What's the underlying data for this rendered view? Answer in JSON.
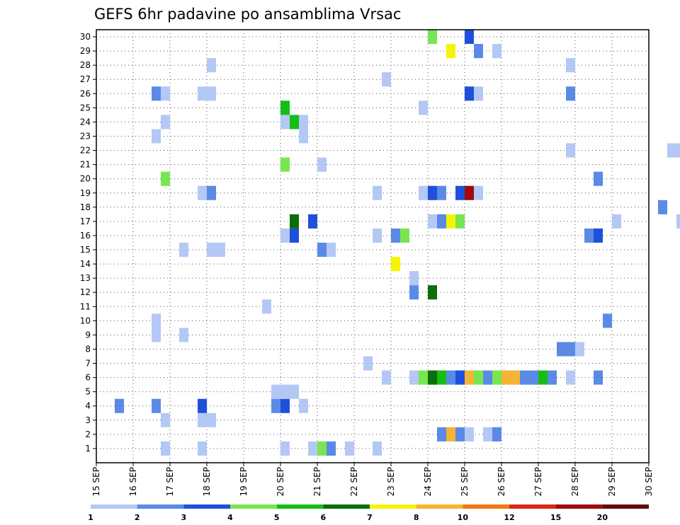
{
  "chart_data": {
    "type": "heatmap",
    "title": "GEFS 6hr padavine po ansamblima Vrsac",
    "xlabel": "",
    "ylabel": "",
    "x_ticks": [
      "15 SEP",
      "16 SEP",
      "17 SEP",
      "18 SEP",
      "19 SEP",
      "20 SEP",
      "21 SEP",
      "22 SEP",
      "23 SEP",
      "24 SEP",
      "25 SEP",
      "26 SEP",
      "27 SEP",
      "28 SEP",
      "29 SEP",
      "30 SEP"
    ],
    "y_ticks": [
      "1",
      "2",
      "3",
      "4",
      "5",
      "6",
      "7",
      "8",
      "9",
      "10",
      "11",
      "12",
      "13",
      "14",
      "15",
      "16",
      "17",
      "18",
      "19",
      "20",
      "21",
      "22",
      "23",
      "24",
      "25",
      "26",
      "27",
      "28",
      "29",
      "30"
    ],
    "x_range": [
      "15 SEP",
      "30 SEP"
    ],
    "y_range": [
      1,
      30
    ],
    "time_step_hours": 6,
    "grid": true,
    "legend": "bottom",
    "colorbar": {
      "labels": [
        "1",
        "2",
        "3",
        "4",
        "5",
        "6",
        "7",
        "8",
        "10",
        "12",
        "15",
        "20"
      ],
      "colors": [
        "#b4c8f5",
        "#5a8ae6",
        "#1e50dc",
        "#78e650",
        "#14be14",
        "#0a6e0a",
        "#f5f500",
        "#f5b432",
        "#f57814",
        "#dc2814",
        "#a00a0a",
        "#640a0a"
      ]
    },
    "cells": [
      {
        "m": 1,
        "t": "16 SEP 18Z",
        "v": 1.5
      },
      {
        "m": 1,
        "t": "20 SEP 00Z",
        "v": 1.5
      },
      {
        "m": 1,
        "t": "20 SEP 18Z",
        "v": 1.5
      },
      {
        "m": 1,
        "t": "21 SEP 00Z",
        "v": 4.5
      },
      {
        "m": 1,
        "t": "21 SEP 06Z",
        "v": 2.5
      },
      {
        "m": 1,
        "t": "21 SEP 18Z",
        "v": 1.5
      },
      {
        "m": 1,
        "t": "22 SEP 12Z",
        "v": 1.5
      },
      {
        "m": 1,
        "t": "17 SEP 18Z",
        "v": 1.5
      },
      {
        "m": 2,
        "t": "24 SEP 06Z",
        "v": 2.5
      },
      {
        "m": 2,
        "t": "24 SEP 12Z",
        "v": 9
      },
      {
        "m": 2,
        "t": "24 SEP 18Z",
        "v": 2.5
      },
      {
        "m": 2,
        "t": "25 SEP 00Z",
        "v": 1.5
      },
      {
        "m": 2,
        "t": "25 SEP 12Z",
        "v": 1.5
      },
      {
        "m": 2,
        "t": "25 SEP 18Z",
        "v": 2.5
      },
      {
        "m": 3,
        "t": "16 SEP 18Z",
        "v": 1.5
      },
      {
        "m": 3,
        "t": "17 SEP 18Z",
        "v": 1.5
      },
      {
        "m": 3,
        "t": "18 SEP 00Z",
        "v": 1.5
      },
      {
        "m": 4,
        "t": "15 SEP 12Z",
        "v": 2.5
      },
      {
        "m": 4,
        "t": "16 SEP 12Z",
        "v": 2.5
      },
      {
        "m": 4,
        "t": "17 SEP 18Z",
        "v": 3.5
      },
      {
        "m": 4,
        "t": "19 SEP 18Z",
        "v": 2.5
      },
      {
        "m": 4,
        "t": "20 SEP 00Z",
        "v": 3.5
      },
      {
        "m": 4,
        "t": "20 SEP 12Z",
        "v": 1.5
      },
      {
        "m": 5,
        "t": "19 SEP 18Z",
        "v": 1.5
      },
      {
        "m": 5,
        "t": "20 SEP 00Z",
        "v": 1.5
      },
      {
        "m": 5,
        "t": "20 SEP 06Z",
        "v": 1.5
      },
      {
        "m": 6,
        "t": "22 SEP 18Z",
        "v": 1.5
      },
      {
        "m": 6,
        "t": "23 SEP 12Z",
        "v": 1.5
      },
      {
        "m": 6,
        "t": "23 SEP 18Z",
        "v": 4.5
      },
      {
        "m": 6,
        "t": "24 SEP 00Z",
        "v": 6.5
      },
      {
        "m": 6,
        "t": "24 SEP 06Z",
        "v": 5.5
      },
      {
        "m": 6,
        "t": "24 SEP 12Z",
        "v": 2.5
      },
      {
        "m": 6,
        "t": "24 SEP 18Z",
        "v": 3.5
      },
      {
        "m": 6,
        "t": "25 SEP 00Z",
        "v": 9
      },
      {
        "m": 6,
        "t": "25 SEP 06Z",
        "v": 4.5
      },
      {
        "m": 6,
        "t": "25 SEP 12Z",
        "v": 2.5
      },
      {
        "m": 6,
        "t": "25 SEP 18Z",
        "v": 4.5
      },
      {
        "m": 6,
        "t": "26 SEP 00Z",
        "v": 9
      },
      {
        "m": 6,
        "t": "26 SEP 06Z",
        "v": 9
      },
      {
        "m": 6,
        "t": "26 SEP 12Z",
        "v": 2.5
      },
      {
        "m": 6,
        "t": "26 SEP 18Z",
        "v": 2.5
      },
      {
        "m": 6,
        "t": "27 SEP 00Z",
        "v": 5.5
      },
      {
        "m": 6,
        "t": "27 SEP 06Z",
        "v": 2.5
      },
      {
        "m": 6,
        "t": "27 SEP 18Z",
        "v": 1.5
      },
      {
        "m": 6,
        "t": "28 SEP 12Z",
        "v": 2.5
      },
      {
        "m": 7,
        "t": "22 SEP 06Z",
        "v": 1.5
      },
      {
        "m": 8,
        "t": "27 SEP 12Z",
        "v": 2.5
      },
      {
        "m": 8,
        "t": "27 SEP 18Z",
        "v": 2.5
      },
      {
        "m": 8,
        "t": "28 SEP 00Z",
        "v": 1.5
      },
      {
        "m": 9,
        "t": "16 SEP 12Z",
        "v": 1.5
      },
      {
        "m": 9,
        "t": "17 SEP 06Z",
        "v": 1.5
      },
      {
        "m": 10,
        "t": "16 SEP 12Z",
        "v": 1.5
      },
      {
        "m": 10,
        "t": "28 SEP 18Z",
        "v": 2.5
      },
      {
        "m": 11,
        "t": "19 SEP 12Z",
        "v": 1.5
      },
      {
        "m": 12,
        "t": "23 SEP 12Z",
        "v": 2.5
      },
      {
        "m": 12,
        "t": "24 SEP 00Z",
        "v": 6.5
      },
      {
        "m": 13,
        "t": "23 SEP 12Z",
        "v": 1.5
      },
      {
        "m": 14,
        "t": "23 SEP 00Z",
        "v": 7.5
      },
      {
        "m": 15,
        "t": "17 SEP 06Z",
        "v": 1.5
      },
      {
        "m": 15,
        "t": "18 SEP 00Z",
        "v": 1.5
      },
      {
        "m": 15,
        "t": "18 SEP 06Z",
        "v": 1.5
      },
      {
        "m": 15,
        "t": "21 SEP 00Z",
        "v": 2.5
      },
      {
        "m": 15,
        "t": "21 SEP 06Z",
        "v": 1.5
      },
      {
        "m": 16,
        "t": "20 SEP 00Z",
        "v": 1.5
      },
      {
        "m": 16,
        "t": "20 SEP 06Z",
        "v": 3.5
      },
      {
        "m": 16,
        "t": "22 SEP 12Z",
        "v": 1.5
      },
      {
        "m": 16,
        "t": "23 SEP 00Z",
        "v": 2.5
      },
      {
        "m": 16,
        "t": "23 SEP 06Z",
        "v": 4.5
      },
      {
        "m": 16,
        "t": "28 SEP 06Z",
        "v": 2.5
      },
      {
        "m": 16,
        "t": "28 SEP 12Z",
        "v": 3.5
      },
      {
        "m": 17,
        "t": "20 SEP 06Z",
        "v": 6.5
      },
      {
        "m": 17,
        "t": "20 SEP 18Z",
        "v": 3.5
      },
      {
        "m": 17,
        "t": "24 SEP 00Z",
        "v": 1.5
      },
      {
        "m": 17,
        "t": "24 SEP 06Z",
        "v": 2.5
      },
      {
        "m": 17,
        "t": "24 SEP 12Z",
        "v": 7.5
      },
      {
        "m": 17,
        "t": "24 SEP 18Z",
        "v": 4.5
      },
      {
        "m": 17,
        "t": "29 SEP 00Z",
        "v": 1.5
      },
      {
        "m": 17,
        "t": "30 SEP 18Z",
        "v": 1.5
      },
      {
        "m": 18,
        "t": "30 SEP 06Z",
        "v": 2.5
      },
      {
        "m": 19,
        "t": "17 SEP 18Z",
        "v": 1.5
      },
      {
        "m": 19,
        "t": "18 SEP 00Z",
        "v": 2.5
      },
      {
        "m": 19,
        "t": "22 SEP 12Z",
        "v": 1.5
      },
      {
        "m": 19,
        "t": "23 SEP 18Z",
        "v": 1.5
      },
      {
        "m": 19,
        "t": "24 SEP 00Z",
        "v": 3.5
      },
      {
        "m": 19,
        "t": "24 SEP 06Z",
        "v": 2.5
      },
      {
        "m": 19,
        "t": "24 SEP 18Z",
        "v": 3.5
      },
      {
        "m": 19,
        "t": "25 SEP 00Z",
        "v": 17
      },
      {
        "m": 19,
        "t": "25 SEP 06Z",
        "v": 1.5
      },
      {
        "m": 20,
        "t": "16 SEP 18Z",
        "v": 4.5
      },
      {
        "m": 20,
        "t": "28 SEP 12Z",
        "v": 2.5
      },
      {
        "m": 21,
        "t": "20 SEP 00Z",
        "v": 4.5
      },
      {
        "m": 21,
        "t": "21 SEP 00Z",
        "v": 1.5
      },
      {
        "m": 22,
        "t": "27 SEP 18Z",
        "v": 1.5
      },
      {
        "m": 22,
        "t": "30 SEP 12Z",
        "v": 1.5
      },
      {
        "m": 22,
        "t": "30 SEP 18Z",
        "v": 1.5
      },
      {
        "m": 23,
        "t": "16 SEP 12Z",
        "v": 1.5
      },
      {
        "m": 23,
        "t": "20 SEP 12Z",
        "v": 1.5
      },
      {
        "m": 24,
        "t": "16 SEP 18Z",
        "v": 1.5
      },
      {
        "m": 24,
        "t": "20 SEP 00Z",
        "v": 1.5
      },
      {
        "m": 24,
        "t": "20 SEP 06Z",
        "v": 5.5
      },
      {
        "m": 24,
        "t": "20 SEP 12Z",
        "v": 1.5
      },
      {
        "m": 25,
        "t": "20 SEP 00Z",
        "v": 5.5
      },
      {
        "m": 25,
        "t": "23 SEP 18Z",
        "v": 1.5
      },
      {
        "m": 26,
        "t": "16 SEP 12Z",
        "v": 2.5
      },
      {
        "m": 26,
        "t": "16 SEP 18Z",
        "v": 1.5
      },
      {
        "m": 26,
        "t": "17 SEP 18Z",
        "v": 1.5
      },
      {
        "m": 26,
        "t": "18 SEP 00Z",
        "v": 1.5
      },
      {
        "m": 26,
        "t": "25 SEP 00Z",
        "v": 3.5
      },
      {
        "m": 26,
        "t": "25 SEP 06Z",
        "v": 1.5
      },
      {
        "m": 26,
        "t": "27 SEP 18Z",
        "v": 2.5
      },
      {
        "m": 27,
        "t": "22 SEP 18Z",
        "v": 1.5
      },
      {
        "m": 28,
        "t": "18 SEP 00Z",
        "v": 1.5
      },
      {
        "m": 28,
        "t": "27 SEP 18Z",
        "v": 1.5
      },
      {
        "m": 29,
        "t": "24 SEP 12Z",
        "v": 7.5
      },
      {
        "m": 29,
        "t": "25 SEP 06Z",
        "v": 2.5
      },
      {
        "m": 29,
        "t": "25 SEP 18Z",
        "v": 1.5
      },
      {
        "m": 30,
        "t": "24 SEP 00Z",
        "v": 4.5
      },
      {
        "m": 30,
        "t": "25 SEP 00Z",
        "v": 3.5
      }
    ]
  }
}
